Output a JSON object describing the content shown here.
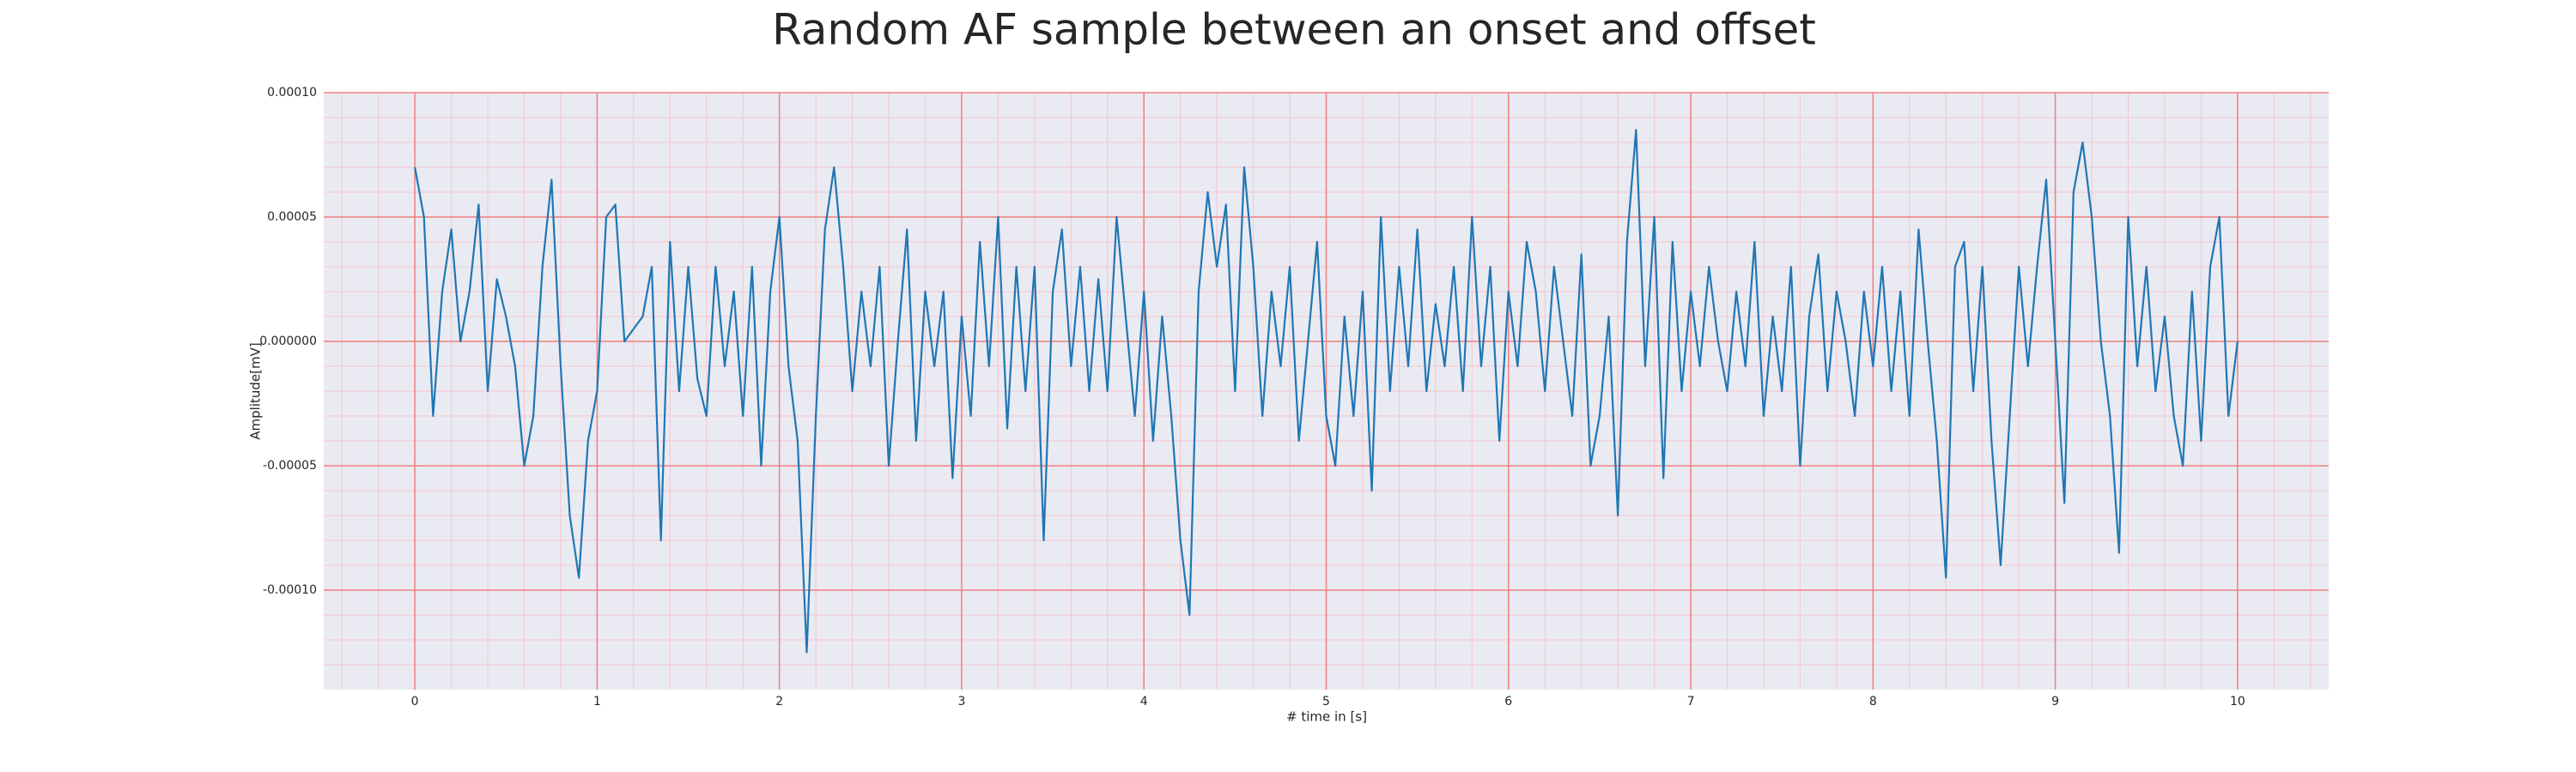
{
  "chart_data": {
    "type": "line",
    "title": "Random AF sample between an onset and offset",
    "xlabel": "# time in [s]",
    "ylabel": "Amplitude[mV]",
    "xlim": [
      -0.5,
      10.5
    ],
    "ylim": [
      -0.00014,
      0.0001
    ],
    "xticks": [
      0,
      1,
      2,
      3,
      4,
      5,
      6,
      7,
      8,
      9,
      10
    ],
    "yticks": [
      {
        "value": 0.0001,
        "label": "0.00010"
      },
      {
        "value": 5e-05,
        "label": "0.00005"
      },
      {
        "value": 0,
        "label": "0.000000"
      },
      {
        "value": -5e-05,
        "label": "-0.00005"
      },
      {
        "value": -0.0001,
        "label": "-0.00010"
      }
    ],
    "xminorticks": [
      -0.4,
      -0.2,
      0.2,
      0.4,
      0.6,
      0.8,
      1.2,
      1.4,
      1.6,
      1.8,
      2.2,
      2.4,
      2.6,
      2.8,
      3.2,
      3.4,
      3.6,
      3.8,
      4.2,
      4.4,
      4.6,
      4.8,
      5.2,
      5.4,
      5.6,
      5.8,
      6.2,
      6.4,
      6.6,
      6.8,
      7.2,
      7.4,
      7.6,
      7.8,
      8.2,
      8.4,
      8.6,
      8.8,
      9.2,
      9.4,
      9.6,
      9.8,
      10.2,
      10.4
    ],
    "yminorticks": [
      -0.00013,
      -0.00012,
      -0.00011,
      -9e-05,
      -8e-05,
      -7e-05,
      -6e-05,
      -4e-05,
      -3e-05,
      -2e-05,
      -1e-05,
      1e-05,
      2e-05,
      3e-05,
      4e-05,
      6e-05,
      7e-05,
      8e-05,
      9e-05
    ],
    "grid": true,
    "grid_color": "#f08080",
    "minor_grid_color": "#f5c6cf",
    "background": "#eaeaf2",
    "series": [
      {
        "color": "#1f77b4",
        "x": [
          0,
          0.05,
          0.1,
          0.15,
          0.2,
          0.25,
          0.3,
          0.35,
          0.4,
          0.45,
          0.5,
          0.55,
          0.6,
          0.65,
          0.7,
          0.75,
          0.8,
          0.85,
          0.9,
          0.95,
          1,
          1.05,
          1.1,
          1.15,
          1.2,
          1.25,
          1.3,
          1.35,
          1.4,
          1.45,
          1.5,
          1.55,
          1.6,
          1.65,
          1.7,
          1.75,
          1.8,
          1.85,
          1.9,
          1.95,
          2,
          2.05,
          2.1,
          2.15,
          2.2,
          2.25,
          2.3,
          2.35,
          2.4,
          2.45,
          2.5,
          2.55,
          2.6,
          2.65,
          2.7,
          2.75,
          2.8,
          2.85,
          2.9,
          2.95,
          3,
          3.05,
          3.1,
          3.15,
          3.2,
          3.25,
          3.3,
          3.35,
          3.4,
          3.45,
          3.5,
          3.55,
          3.6,
          3.65,
          3.7,
          3.75,
          3.8,
          3.85,
          3.9,
          3.95,
          4,
          4.05,
          4.1,
          4.15,
          4.2,
          4.25,
          4.3,
          4.35,
          4.4,
          4.45,
          4.5,
          4.55,
          4.6,
          4.65,
          4.7,
          4.75,
          4.8,
          4.85,
          4.9,
          4.95,
          5,
          5.05,
          5.1,
          5.15,
          5.2,
          5.25,
          5.3,
          5.35,
          5.4,
          5.45,
          5.5,
          5.55,
          5.6,
          5.65,
          5.7,
          5.75,
          5.8,
          5.85,
          5.9,
          5.95,
          6,
          6.05,
          6.1,
          6.15,
          6.2,
          6.25,
          6.3,
          6.35,
          6.4,
          6.45,
          6.5,
          6.55,
          6.6,
          6.65,
          6.7,
          6.75,
          6.8,
          6.85,
          6.9,
          6.95,
          7,
          7.05,
          7.1,
          7.15,
          7.2,
          7.25,
          7.3,
          7.35,
          7.4,
          7.45,
          7.5,
          7.55,
          7.6,
          7.65,
          7.7,
          7.75,
          7.8,
          7.85,
          7.9,
          7.95,
          8,
          8.05,
          8.1,
          8.15,
          8.2,
          8.25,
          8.3,
          8.35,
          8.4,
          8.45,
          8.5,
          8.55,
          8.6,
          8.65,
          8.7,
          8.75,
          8.8,
          8.85,
          8.9,
          8.95,
          9,
          9.05,
          9.1,
          9.15,
          9.2,
          9.25,
          9.3,
          9.35,
          9.4,
          9.45,
          9.5,
          9.55,
          9.6,
          9.65,
          9.7,
          9.75,
          9.8,
          9.85,
          9.9,
          9.95,
          10
        ],
        "values": [
          7e-05,
          5e-05,
          -3e-05,
          2e-05,
          4.5e-05,
          0,
          2e-05,
          5.5e-05,
          -2e-05,
          2.5e-05,
          1e-05,
          -1e-05,
          -5e-05,
          -3e-05,
          3e-05,
          6.5e-05,
          -1e-05,
          -7e-05,
          -9.5e-05,
          -4e-05,
          -2e-05,
          5e-05,
          5.5e-05,
          0,
          5e-06,
          1e-05,
          3e-05,
          -8e-05,
          4e-05,
          -2e-05,
          3e-05,
          -1.5e-05,
          -3e-05,
          3e-05,
          -1e-05,
          2e-05,
          -3e-05,
          3e-05,
          -5e-05,
          2e-05,
          5e-05,
          -1e-05,
          -4e-05,
          -0.000125,
          -3e-05,
          4.5e-05,
          7e-05,
          3e-05,
          -2e-05,
          2e-05,
          -1e-05,
          3e-05,
          -5e-05,
          0,
          4.5e-05,
          -4e-05,
          2e-05,
          -1e-05,
          2e-05,
          -5.5e-05,
          1e-05,
          -3e-05,
          4e-05,
          -1e-05,
          5e-05,
          -3.5e-05,
          3e-05,
          -2e-05,
          3e-05,
          -8e-05,
          2e-05,
          4.5e-05,
          -1e-05,
          3e-05,
          -2e-05,
          2.5e-05,
          -2e-05,
          5e-05,
          1e-05,
          -3e-05,
          2e-05,
          -4e-05,
          1e-05,
          -3e-05,
          -8e-05,
          -0.00011,
          2e-05,
          6e-05,
          3e-05,
          5.5e-05,
          -2e-05,
          7e-05,
          3e-05,
          -3e-05,
          2e-05,
          -1e-05,
          3e-05,
          -4e-05,
          0,
          4e-05,
          -3e-05,
          -5e-05,
          1e-05,
          -3e-05,
          2e-05,
          -6e-05,
          5e-05,
          -2e-05,
          3e-05,
          -1e-05,
          4.5e-05,
          -2e-05,
          1.5e-05,
          -1e-05,
          3e-05,
          -2e-05,
          5e-05,
          -1e-05,
          3e-05,
          -4e-05,
          2e-05,
          -1e-05,
          4e-05,
          2e-05,
          -2e-05,
          3e-05,
          0,
          -3e-05,
          3.5e-05,
          -5e-05,
          -3e-05,
          1e-05,
          -7e-05,
          4e-05,
          8.5e-05,
          -1e-05,
          5e-05,
          -5.5e-05,
          4e-05,
          -2e-05,
          2e-05,
          -1e-05,
          3e-05,
          0,
          -2e-05,
          2e-05,
          -1e-05,
          4e-05,
          -3e-05,
          1e-05,
          -2e-05,
          3e-05,
          -5e-05,
          1e-05,
          3.5e-05,
          -2e-05,
          2e-05,
          0,
          -3e-05,
          2e-05,
          -1e-05,
          3e-05,
          -2e-05,
          2e-05,
          -3e-05,
          4.5e-05,
          0,
          -4e-05,
          -9.5e-05,
          3e-05,
          4e-05,
          -2e-05,
          3e-05,
          -4e-05,
          -9e-05,
          -3e-05,
          3e-05,
          -1e-05,
          3e-05,
          6.5e-05,
          0,
          -6.5e-05,
          6e-05,
          8e-05,
          5e-05,
          0,
          -3e-05,
          -8.5e-05,
          5e-05,
          -1e-05,
          3e-05,
          -2e-05,
          1e-05,
          -3e-05,
          -5e-05,
          2e-05,
          -4e-05,
          3e-05,
          5e-05,
          -3e-05,
          0
        ]
      }
    ]
  }
}
